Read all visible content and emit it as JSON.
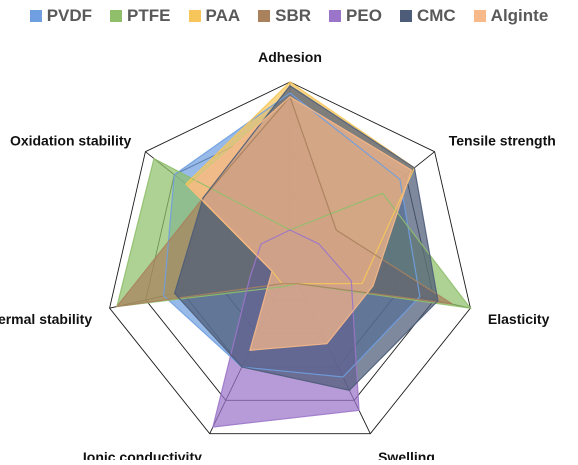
{
  "chart_data": {
    "type": "radar",
    "axes": [
      "Adhesion",
      "Tensile strength",
      "Elasticity",
      "Swelling",
      "Ionic conductivity",
      "Thermal stability",
      "Oxidation stability"
    ],
    "range": [
      0,
      5
    ],
    "grid": true,
    "legend": "top",
    "series": [
      {
        "name": "PVDF",
        "color": "#6f9fe0",
        "values": [
          4.7,
          3.8,
          3.6,
          3.3,
          3.0,
          3.5,
          4.0
        ]
      },
      {
        "name": "PTFE",
        "color": "#8fbf6b",
        "values": [
          1.0,
          3.2,
          5.0,
          0.5,
          0.6,
          4.8,
          4.7
        ]
      },
      {
        "name": "PAA",
        "color": "#f7c65a",
        "values": [
          5.0,
          4.3,
          2.0,
          0.5,
          0.5,
          0.5,
          3.6
        ]
      },
      {
        "name": "SBR",
        "color": "#a9825d",
        "values": [
          4.6,
          1.6,
          4.5,
          0.5,
          0.5,
          4.8,
          3.0
        ]
      },
      {
        "name": "PEO",
        "color": "#9b75c9",
        "values": [
          1.0,
          1.0,
          1.7,
          4.3,
          4.8,
          1.1,
          1.0
        ]
      },
      {
        "name": "CMC",
        "color": "#4d5c79",
        "values": [
          4.9,
          4.3,
          4.1,
          3.7,
          3.0,
          3.2,
          3.0
        ]
      },
      {
        "name": "Alginte",
        "color": "#f8b98a",
        "values": [
          4.6,
          4.2,
          2.3,
          2.3,
          2.5,
          0.5,
          3.5
        ]
      }
    ]
  }
}
